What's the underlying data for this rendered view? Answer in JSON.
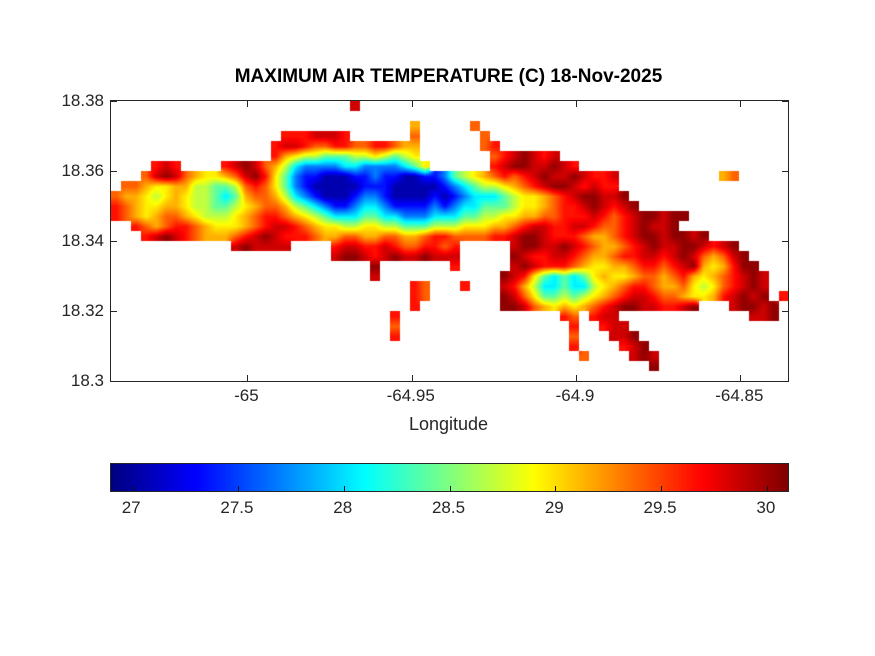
{
  "figure": {
    "title": "MAXIMUM AIR TEMPERATURE (C) 18-Nov-2025",
    "xlabel": "Longitude"
  },
  "colors": {
    "background": "#ffffff",
    "axis": "#262626",
    "title": "#000000",
    "sea": "#ffffff"
  },
  "chart_data": {
    "type": "heatmap",
    "title": "MAXIMUM AIR TEMPERATURE (C) 18-Nov-2025",
    "variable": "Maximum air temperature",
    "units": "C",
    "date": "18-Nov-2025",
    "xlabel": "Longitude",
    "ylabel": "",
    "colormap": "jet",
    "grid": false,
    "xlim": [
      -65.0415,
      -64.8355
    ],
    "ylim": [
      18.3,
      18.38
    ],
    "xticks": [
      {
        "value": -65,
        "label": "-65"
      },
      {
        "value": -64.95,
        "label": "-64.95"
      },
      {
        "value": -64.9,
        "label": "-64.9"
      },
      {
        "value": -64.85,
        "label": "-64.85"
      }
    ],
    "yticks": [
      {
        "value": 18.38,
        "label": "18.38"
      },
      {
        "value": 18.36,
        "label": "18.36"
      },
      {
        "value": 18.34,
        "label": "18.34"
      },
      {
        "value": 18.32,
        "label": "18.32"
      },
      {
        "value": 18.3,
        "label": "18.3"
      }
    ],
    "colorbar": {
      "orientation": "horizontal",
      "clim": [
        26.9,
        30.1
      ],
      "ticks": [
        {
          "value": 27,
          "label": "27"
        },
        {
          "value": 27.5,
          "label": "27.5"
        },
        {
          "value": 28,
          "label": "28"
        },
        {
          "value": 28.5,
          "label": "28.5"
        },
        {
          "value": 29,
          "label": "29"
        },
        {
          "value": 29.5,
          "label": "29.5"
        },
        {
          "value": 30,
          "label": "30"
        }
      ]
    },
    "grid_encoding": {
      "sea": ".",
      "levels": {
        "a": 27.05,
        "b": 27.35,
        "c": 27.7,
        "d": 28.05,
        "e": 28.4,
        "f": 28.7,
        "g": 28.95,
        "h": 29.15,
        "i": 29.4,
        "j": 29.65,
        "k": 29.85,
        "l": 30.05
      }
    },
    "grid_rows": [
      "........................k...........................................",
      "....................................................................",
      "..............................h.....i...............................",
      ".................jjjkkkj......i......i..............................",
      "................jkkjiijjiijjihh......ij.............................",
      "................jhgffeeeffgfefg.......ijklkjk.......................",
      "....jkj....jklkihfdccccddccccdeg......jkllkklkj.....................",
      "...iklkihgghikljgecbbaaabbcbbaabbcefghijijklkklkjjk..........hi.....",
      ".iihgghhffeefijigecbaaaaabbbaaaaabcdeffghijkllkjkjj.................",
      "ihhgfghgffedehiihfdcbaaabccbaaaababcdddefgghijkllkkl................",
      "jihgghhgffeefghiihfedcbbcddcbbbbcbcddeeefgghijjklkjkl...............",
      "jihghiihgfffghijjihgfedddeeddcccdddeeffgghhiijjjkjijkllkll..........",
      "..jihijjihggghijkkjihggffggffeeefffggghhijkkjjkkjiijklkkl...........",
      "...jklkjihhhijklkjjjihhiihhiihhijjiiiijjkllkjjjihhijkllkllkl........",
      "............klkkkk....jkkjjkjiijjij.....kllkklkjihhijklkkllkjkl.....",
      "......................kllkjklkklkkk.....lkjjkkjihhijjkkjklkihikl....",
      "..........................l.......j.....klkjjjihgghhijjijklhghjll...",
      "..........................k............lkjgededeghgghiihijhghijklk..",
      "..............................ji...j...kjhfddeddfghijjihhigfgijklk..",
      "..............................ji.......lkigeefefghijkkjiihgghjklkl.j",
      "..............................j........llkihghghijkllkkjjkl...kllkl.",
      "............................j................ji.jkk.............kkl.",
      "............................i.................j..jkk................",
      "............................j.................i...kkl...............",
      "..............................................j....jkl..............",
      "...............................................i....klk.............",
      "......................................................l.............",
      "...................................................................."
    ]
  }
}
